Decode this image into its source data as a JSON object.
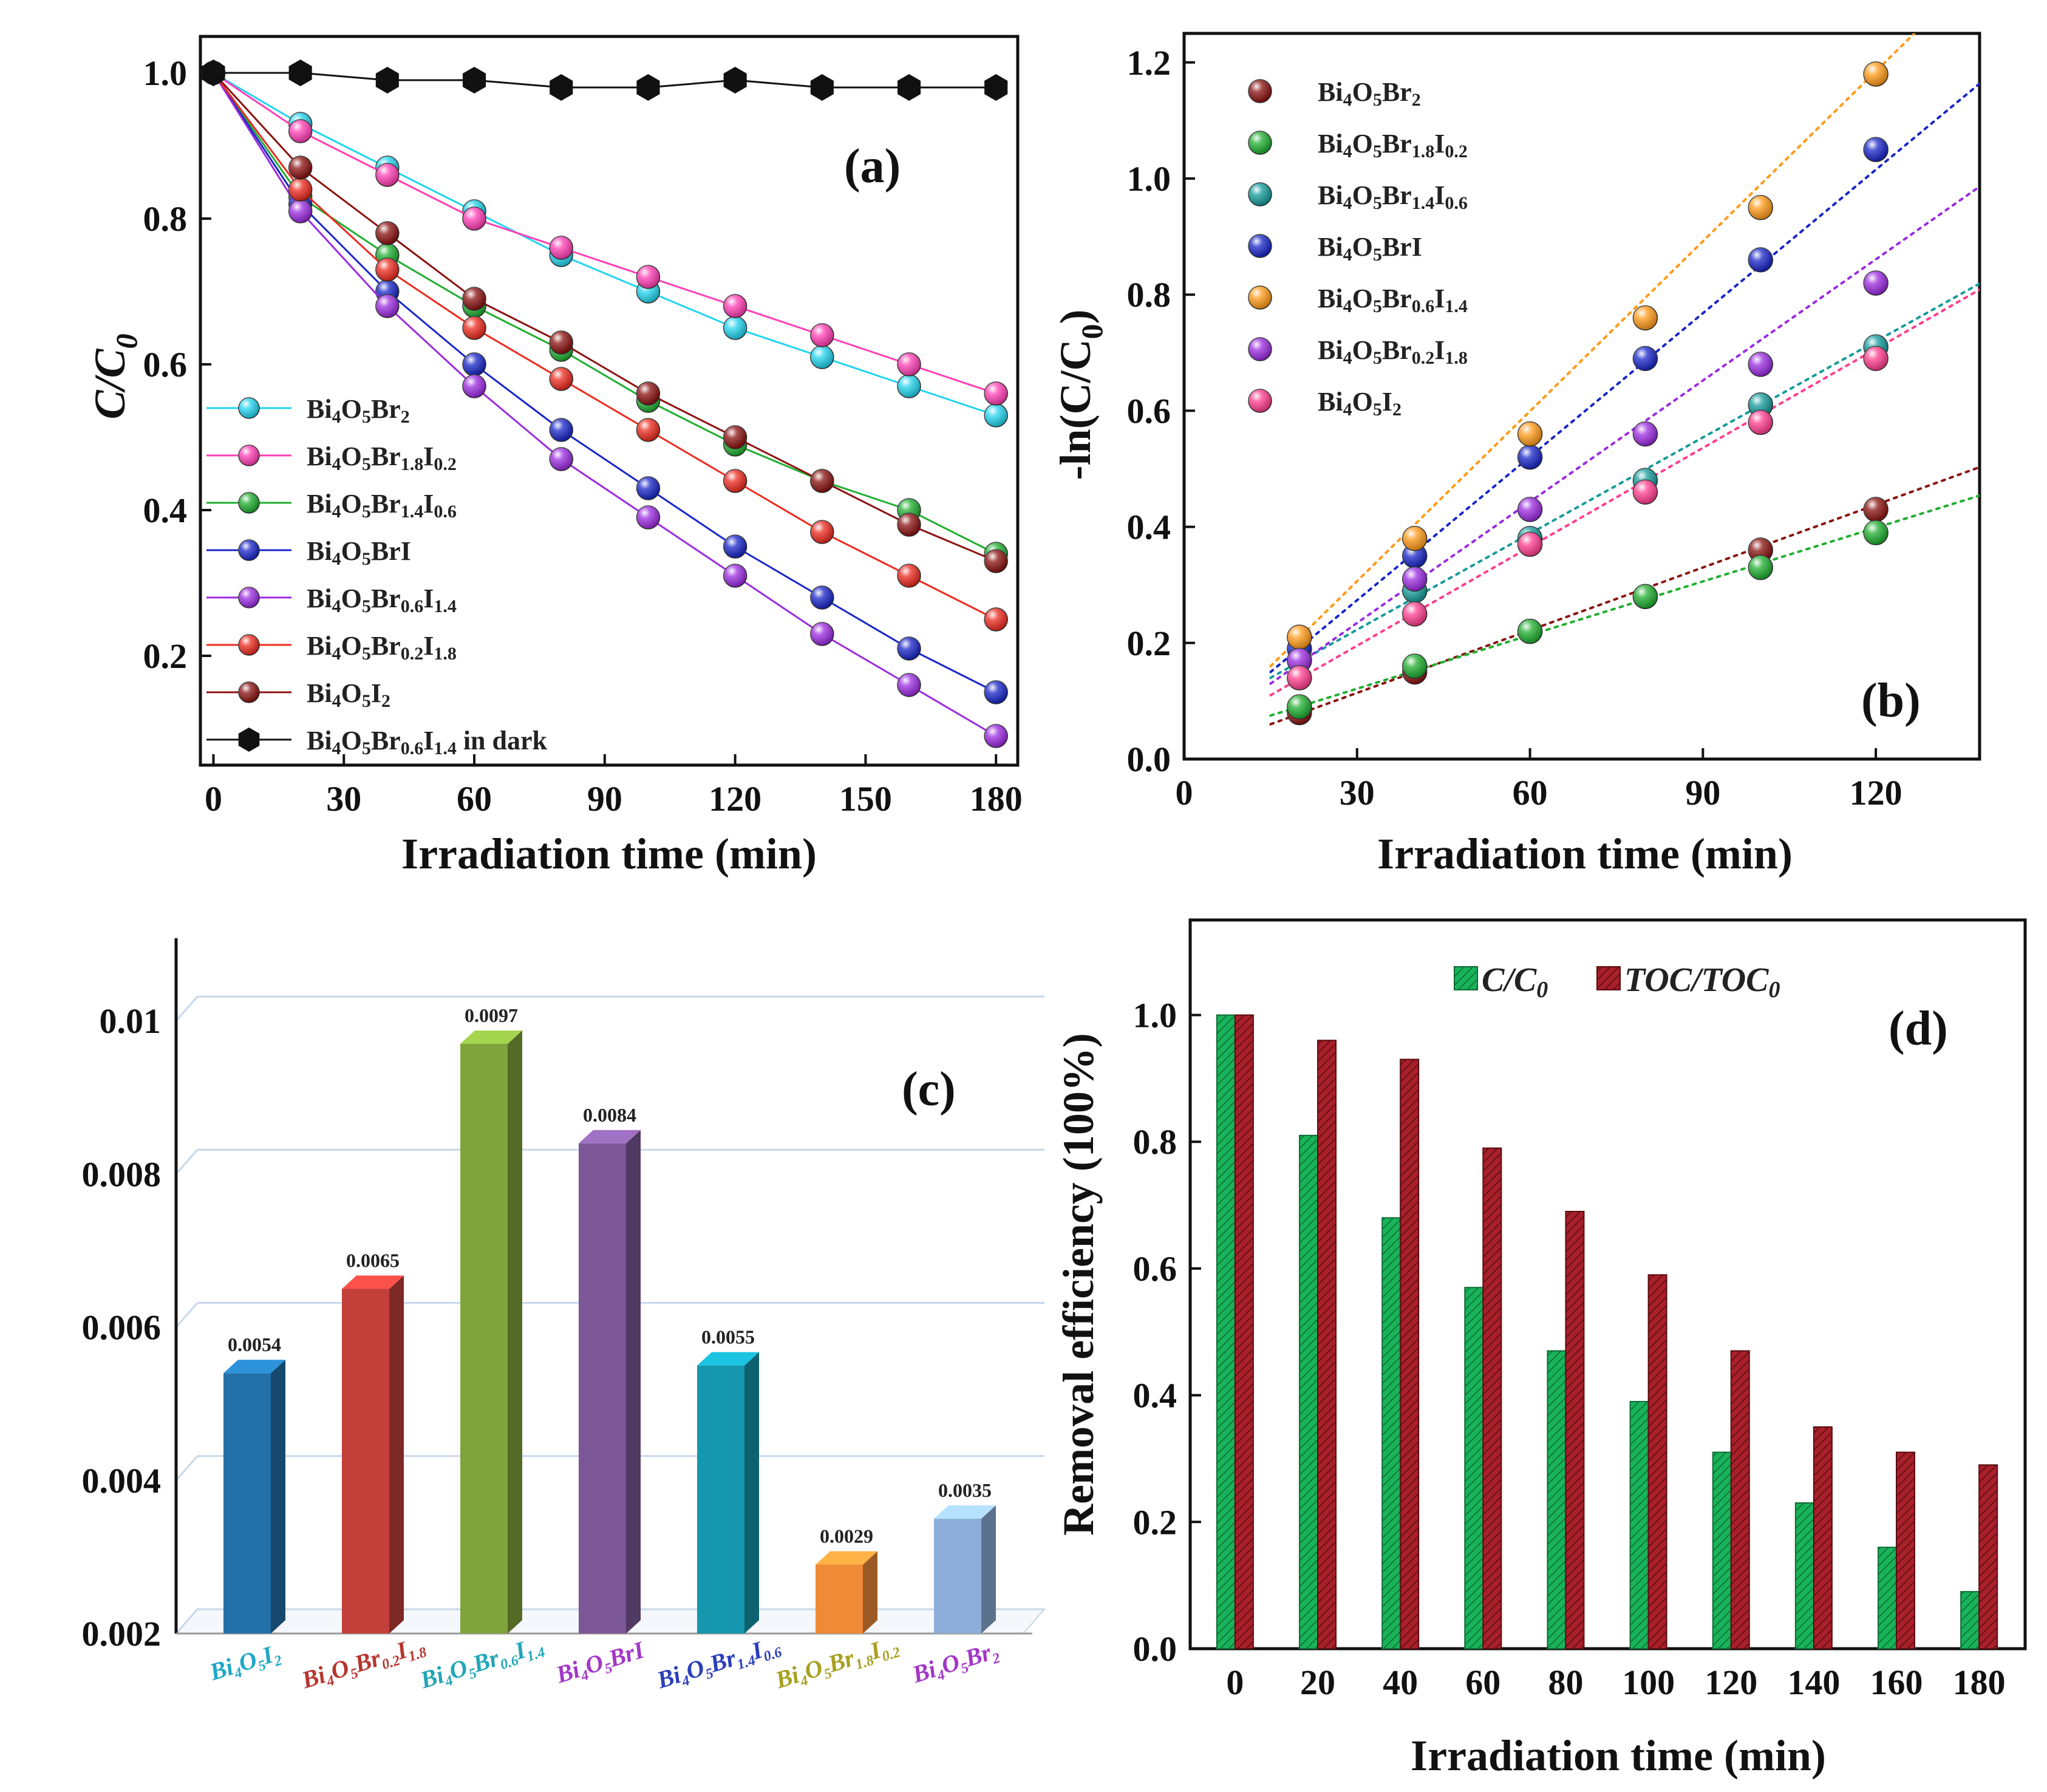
{
  "colors": {
    "cyan": "#22d3ee",
    "magenta": "#ff3eb5",
    "green": "#1fae2f",
    "blue": "#1826c8",
    "purple": "#9b2be0",
    "red": "#ec2a1e",
    "darkred": "#8a1210",
    "black": "#111111",
    "orange": "#ff9a18",
    "teal": "#139a9a",
    "pink": "#ff3d8e"
  },
  "chart_data": [
    {
      "panel": "(a)",
      "type": "line",
      "xlabel": "Irradiation time (min)",
      "ylabel": "C/C",
      "ylabel_sub": "0",
      "xlim": [
        -3,
        185
      ],
      "ylim": [
        0.05,
        1.05
      ],
      "xticks": [
        "0",
        "30",
        "60",
        "90",
        "120",
        "150",
        "180"
      ],
      "yticks": [
        "0.2",
        "0.4",
        "0.6",
        "0.8",
        "1.0"
      ],
      "x": [
        0,
        20,
        40,
        60,
        80,
        100,
        120,
        140,
        160,
        180
      ],
      "series": [
        {
          "name": "Bi4O5Br2",
          "color_key": "cyan",
          "marker": "ball",
          "values": [
            1.0,
            0.93,
            0.87,
            0.81,
            0.75,
            0.7,
            0.65,
            0.61,
            0.57,
            0.53
          ]
        },
        {
          "name": "Bi4O5Br1.8I0.2",
          "color_key": "magenta",
          "marker": "ball",
          "values": [
            1.0,
            0.92,
            0.86,
            0.8,
            0.76,
            0.72,
            0.68,
            0.64,
            0.6,
            0.56
          ]
        },
        {
          "name": "Bi4O5Br1.4I0.6",
          "color_key": "green",
          "marker": "ball",
          "values": [
            1.0,
            0.83,
            0.75,
            0.68,
            0.62,
            0.55,
            0.49,
            0.44,
            0.4,
            0.34
          ]
        },
        {
          "name": "Bi4O5BrI",
          "color_key": "blue",
          "marker": "ball",
          "values": [
            1.0,
            0.82,
            0.7,
            0.6,
            0.51,
            0.43,
            0.35,
            0.28,
            0.21,
            0.15
          ]
        },
        {
          "name": "Bi4O5Br0.6I1.4",
          "color_key": "purple",
          "marker": "ball",
          "values": [
            1.0,
            0.81,
            0.68,
            0.57,
            0.47,
            0.39,
            0.31,
            0.23,
            0.16,
            0.09
          ]
        },
        {
          "name": "Bi4O5Br0.2I1.8",
          "color_key": "red",
          "marker": "ball",
          "values": [
            1.0,
            0.84,
            0.73,
            0.65,
            0.58,
            0.51,
            0.44,
            0.37,
            0.31,
            0.25
          ]
        },
        {
          "name": "Bi4O5I2",
          "color_key": "darkred",
          "marker": "ball",
          "values": [
            1.0,
            0.87,
            0.78,
            0.69,
            0.63,
            0.56,
            0.5,
            0.44,
            0.38,
            0.33
          ]
        },
        {
          "name": "Bi4O5Br0.6I1.4 in dark",
          "color_key": "black",
          "marker": "hexagon",
          "values": [
            1.0,
            1.0,
            0.99,
            0.99,
            0.98,
            0.98,
            0.99,
            0.98,
            0.98,
            0.98
          ]
        }
      ],
      "legend": [
        {
          "label": "Bi4O5Br2",
          "color_key": "cyan",
          "marker": "ball"
        },
        {
          "label": "Bi4O5Br1.8I0.2",
          "color_key": "magenta",
          "marker": "ball"
        },
        {
          "label": "Bi4O5Br1.4I0.6",
          "color_key": "green",
          "marker": "ball"
        },
        {
          "label": "Bi4O5BrI",
          "color_key": "blue",
          "marker": "ball"
        },
        {
          "label": "Bi4O5Br0.6I1.4",
          "color_key": "purple",
          "marker": "ball"
        },
        {
          "label": "Bi4O5Br0.2I1.8",
          "color_key": "red",
          "marker": "ball"
        },
        {
          "label": "Bi4O5I2",
          "color_key": "darkred",
          "marker": "ball"
        },
        {
          "label": "Bi4O5Br0.6I1.4 in dark",
          "color_key": "black",
          "marker": "hexagon"
        }
      ]
    },
    {
      "panel": "(b)",
      "type": "scatter",
      "xlabel": "Irradiation time (min)",
      "ylabel": "-ln(C/C",
      "ylabel_sub": "0",
      "ylabel_end": ")",
      "xlim": [
        0,
        138
      ],
      "ylim": [
        0,
        1.25
      ],
      "xticks": [
        "0",
        "30",
        "60",
        "90",
        "120"
      ],
      "yticks": [
        "0.0",
        "0.2",
        "0.4",
        "0.6",
        "0.8",
        "1.0",
        "1.2"
      ],
      "x": [
        20,
        40,
        60,
        80,
        100,
        120
      ],
      "fit_x": [
        15,
        140
      ],
      "series": [
        {
          "name": "Bi4O5Br2",
          "color_key": "darkred",
          "values": [
            0.08,
            0.15,
            0.22,
            0.28,
            0.36,
            0.43
          ],
          "fit": [
            0.06,
            0.51
          ]
        },
        {
          "name": "Bi4O5Br1.8I0.2",
          "color_key": "green",
          "values": [
            0.09,
            0.16,
            0.22,
            0.28,
            0.33,
            0.39
          ],
          "fit": [
            0.075,
            0.46
          ]
        },
        {
          "name": "Bi4O5Br1.4I0.6",
          "color_key": "teal",
          "values": [
            0.17,
            0.29,
            0.38,
            0.48,
            0.61,
            0.71
          ],
          "fit": [
            0.14,
            0.83
          ]
        },
        {
          "name": "Bi4O5BrI",
          "color_key": "blue",
          "values": [
            0.19,
            0.35,
            0.52,
            0.69,
            0.86,
            1.05
          ],
          "fit": [
            0.15,
            1.18
          ]
        },
        {
          "name": "Bi4O5Br0.6I1.4",
          "color_key": "orange",
          "values": [
            0.21,
            0.38,
            0.56,
            0.76,
            0.95,
            1.18
          ],
          "fit": [
            0.16,
            1.38
          ]
        },
        {
          "name": "Bi4O5Br0.2I1.8",
          "color_key": "purple",
          "values": [
            0.17,
            0.31,
            0.43,
            0.56,
            0.68,
            0.82
          ],
          "fit": [
            0.13,
            1.0
          ]
        },
        {
          "name": "Bi4O5I2",
          "color_key": "pink",
          "values": [
            0.14,
            0.25,
            0.37,
            0.46,
            0.58,
            0.69
          ],
          "fit": [
            0.11,
            0.82
          ]
        }
      ],
      "legend": [
        {
          "label": "Bi4O5Br2",
          "color_key": "darkred"
        },
        {
          "label": "Bi4O5Br1.8I0.2",
          "color_key": "green"
        },
        {
          "label": "Bi4O5Br1.4I0.6",
          "color_key": "teal"
        },
        {
          "label": "Bi4O5BrI",
          "color_key": "blue"
        },
        {
          "label": "Bi4O5Br0.6I1.4",
          "color_key": "orange"
        },
        {
          "label": "Bi4O5Br0.2I1.8",
          "color_key": "purple"
        },
        {
          "label": "Bi4O5I2",
          "color_key": "pink"
        }
      ]
    },
    {
      "panel": "(c)",
      "type": "bar",
      "ylim": [
        0.002,
        0.011
      ],
      "yticks": [
        "0.002",
        "0.004",
        "0.006",
        "0.008",
        "0.01"
      ],
      "ytick_values": [
        0.002,
        0.004,
        0.006,
        0.008,
        0.01
      ],
      "categories": [
        "Bi4O5I2",
        "Bi4O5Br0.2I1.8",
        "Bi4O5Br0.6I1.4",
        "Bi4O5BrI",
        "Bi4O5Br1.4I0.6",
        "Bi4O5Br1.8I0.2",
        "Bi4O5Br2"
      ],
      "values": [
        0.0054,
        0.0065,
        0.0097,
        0.0084,
        0.0055,
        0.0029,
        0.0035
      ],
      "value_labels": [
        "0.0054",
        "0.0065",
        "0.0097",
        "0.0084",
        "0.0055",
        "0.0029",
        "0.0035"
      ],
      "bar_colors": [
        "#2271a8",
        "#c23f3a",
        "#7fa43c",
        "#7b5797",
        "#1597ad",
        "#ef8a36",
        "#8daed8"
      ],
      "label_colors": [
        "#1ea8c6",
        "#b5372f",
        "#22a6b6",
        "#a237c6",
        "#2b3fb8",
        "#a8a020",
        "#a237c6"
      ]
    },
    {
      "panel": "(d)",
      "type": "bar",
      "xlabel": "Irradiation time (min)",
      "ylabel": "Removal efficiency (100%)",
      "ylim": [
        0,
        1.15
      ],
      "yticks": [
        "0.0",
        "0.2",
        "0.4",
        "0.6",
        "0.8",
        "1.0"
      ],
      "categories": [
        "0",
        "20",
        "40",
        "60",
        "80",
        "100",
        "120",
        "140",
        "160",
        "180"
      ],
      "series": [
        {
          "name": "C/C0",
          "label": "C/C",
          "sub": "0",
          "color": "#19b35a",
          "values": [
            1.0,
            0.81,
            0.68,
            0.57,
            0.47,
            0.39,
            0.31,
            0.23,
            0.16,
            0.09
          ]
        },
        {
          "name": "TOC/TOC0",
          "label": "TOC/TOC",
          "sub": "0",
          "color": "#a8202a",
          "values": [
            1.0,
            0.96,
            0.93,
            0.79,
            0.69,
            0.59,
            0.47,
            0.35,
            0.31,
            0.29
          ]
        }
      ]
    }
  ]
}
